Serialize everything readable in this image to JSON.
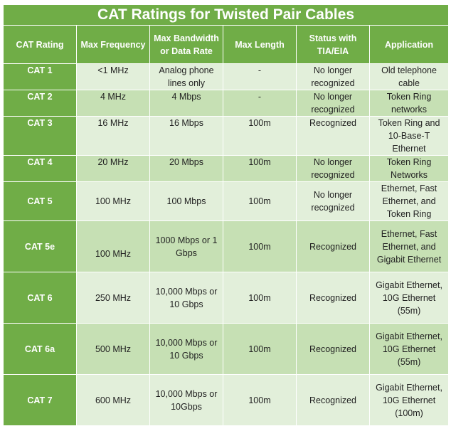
{
  "title": "CAT Ratings for Twisted Pair Cables",
  "colors": {
    "header": "#70ad47",
    "row_light": "#e2efda",
    "row_medium": "#c6e0b4",
    "header_text": "#ffffff"
  },
  "columns": [
    "CAT Rating",
    "Max Frequency",
    "Max Bandwidth or Data Rate",
    "Max Length",
    "Status with TIA/EIA",
    "Application"
  ],
  "rows": [
    {
      "rating": "CAT 1",
      "frequency": "<1 MHz",
      "bandwidth": "Analog phone lines only",
      "length": "-",
      "status": "No longer recognized",
      "application": "Old telephone cable"
    },
    {
      "rating": "CAT 2",
      "frequency": "4 MHz",
      "bandwidth": "4 Mbps",
      "length": "-",
      "status": "No longer recognized",
      "application": "Token Ring networks"
    },
    {
      "rating": "CAT 3",
      "frequency": "16 MHz",
      "bandwidth": "16 Mbps",
      "length": "100m",
      "status": "Recognized",
      "application": "Token Ring and 10-Base-T Ethernet"
    },
    {
      "rating": "CAT 4",
      "frequency": "20 MHz",
      "bandwidth": "20 Mbps",
      "length": "100m",
      "status": "No longer recognized",
      "application": "Token Ring Networks"
    },
    {
      "rating": "CAT 5",
      "frequency": "100 MHz",
      "bandwidth": "100 Mbps",
      "length": "100m",
      "status": "No longer recognized",
      "application": "Ethernet, Fast Ethernet, and Token Ring"
    },
    {
      "rating": "CAT 5e",
      "frequency": "100 MHz",
      "bandwidth": "1000 Mbps or 1 Gbps",
      "length": "100m",
      "status": "Recognized",
      "application": "Ethernet, Fast Ethernet, and Gigabit Ethernet"
    },
    {
      "rating": "CAT 6",
      "frequency": "250 MHz",
      "bandwidth": "10,000 Mbps or 10 Gbps",
      "length": "100m",
      "status": "Recognized",
      "application": "Gigabit Ethernet, 10G Ethernet (55m)"
    },
    {
      "rating": "CAT 6a",
      "frequency": "500 MHz",
      "bandwidth": "10,000 Mbps or 10 Gbps",
      "length": "100m",
      "status": "Recognized",
      "application": "Gigabit Ethernet, 10G Ethernet (55m)"
    },
    {
      "rating": "CAT 7",
      "frequency": "600 MHz",
      "bandwidth": "10,000 Mbps or 10Gbps",
      "length": "100m",
      "status": "Recognized",
      "application": "Gigabit Ethernet, 10G Ethernet (100m)"
    }
  ]
}
